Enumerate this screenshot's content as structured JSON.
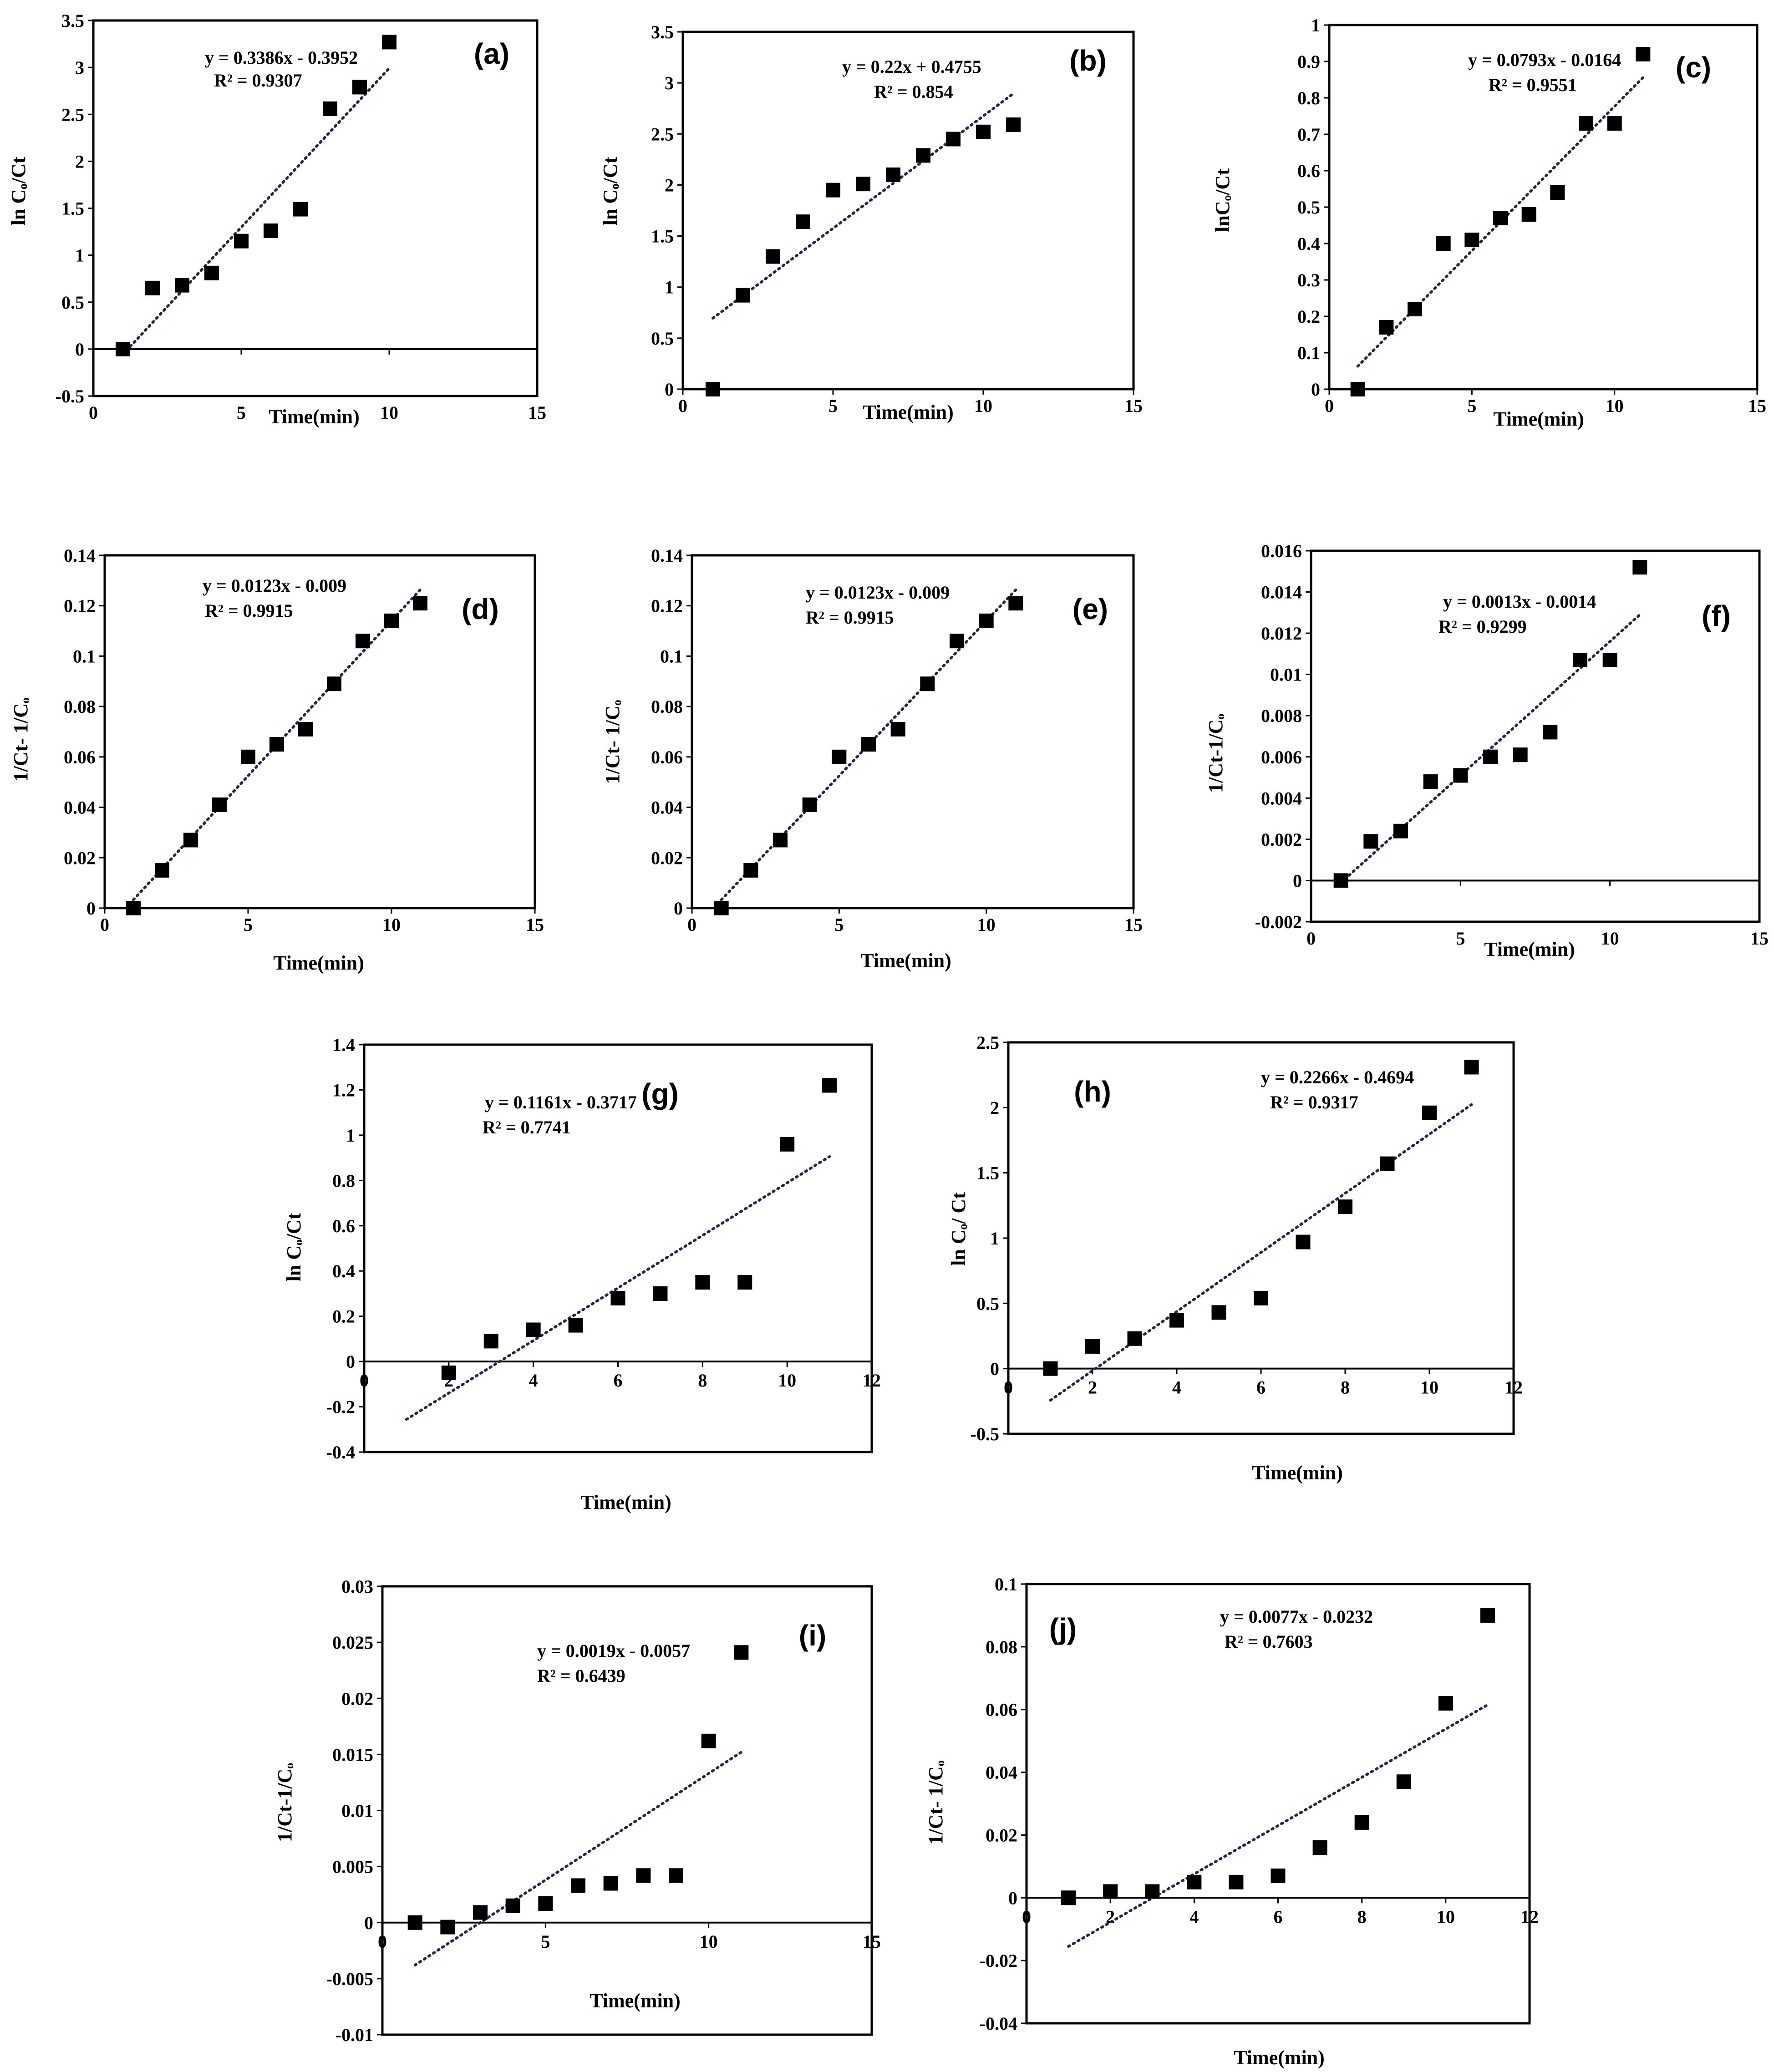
{
  "chart_data": [
    {
      "id": "a",
      "type": "scatter",
      "panel_label": "(a)",
      "xlabel": "Time(min)",
      "ylabel": "ln Cₒ/Ct",
      "xlim": [
        0,
        15
      ],
      "ylim": [
        -0.5,
        3.5
      ],
      "xticks": [
        "0",
        "5",
        "10",
        "15"
      ],
      "yticks": [
        "-0.5",
        "0",
        "0.5",
        "1",
        "1.5",
        "2",
        "2.5",
        "3",
        "3.5"
      ],
      "x": [
        1,
        2,
        3,
        4,
        5,
        6,
        7,
        8,
        9,
        10
      ],
      "y": [
        0,
        0.65,
        0.68,
        0.81,
        1.15,
        1.26,
        1.49,
        2.56,
        2.79,
        3.27
      ],
      "trendline": {
        "slope": 0.3386,
        "intercept": -0.3952,
        "x_range": [
          1,
          10
        ]
      },
      "equation": "y = 0.3386x - 0.3952",
      "r2": "R² = 0.9307"
    },
    {
      "id": "b",
      "type": "scatter",
      "panel_label": "(b)",
      "xlabel": "Time(min)",
      "ylabel": "ln Cₒ/Ct",
      "xlim": [
        0,
        15
      ],
      "ylim": [
        0,
        3.5
      ],
      "xticks": [
        "0",
        "5",
        "10",
        "15"
      ],
      "yticks": [
        "0",
        "0.5",
        "1",
        "1.5",
        "2",
        "2.5",
        "3",
        "3.5"
      ],
      "x": [
        1,
        2,
        3,
        4,
        5,
        6,
        7,
        8,
        9,
        10,
        11
      ],
      "y": [
        0,
        0.92,
        1.3,
        1.64,
        1.95,
        2.01,
        2.1,
        2.29,
        2.45,
        2.52,
        2.59
      ],
      "trendline": {
        "slope": 0.22,
        "intercept": 0.4755,
        "x_range": [
          1,
          11
        ]
      },
      "equation": "y = 0.22x + 0.4755",
      "r2": "R² = 0.854"
    },
    {
      "id": "c",
      "type": "scatter",
      "panel_label": "(c)",
      "xlabel": "Time(min)",
      "ylabel": "lnCₒ/Ct",
      "xlim": [
        0,
        15
      ],
      "ylim": [
        0,
        1
      ],
      "xticks": [
        "0",
        "5",
        "10",
        "15"
      ],
      "yticks": [
        "0",
        "0.1",
        "0.2",
        "0.3",
        "0.4",
        "0.5",
        "0.6",
        "0.7",
        "0.8",
        "0.9",
        "1"
      ],
      "x": [
        1,
        2,
        3,
        4,
        5,
        6,
        7,
        8,
        9,
        10,
        11
      ],
      "y": [
        0,
        0.17,
        0.22,
        0.4,
        0.41,
        0.47,
        0.48,
        0.54,
        0.73,
        0.73,
        0.92
      ],
      "trendline": {
        "slope": 0.0793,
        "intercept": -0.0164,
        "x_range": [
          1,
          11
        ]
      },
      "equation": "y = 0.0793x - 0.0164",
      "r2": "R² = 0.9551"
    },
    {
      "id": "d",
      "type": "scatter",
      "panel_label": "(d)",
      "xlabel": "Time(min)",
      "ylabel": "1/Ct- 1/Cₒ",
      "xlim": [
        0,
        15
      ],
      "ylim": [
        0,
        0.14
      ],
      "xticks": [
        "0",
        "5",
        "10",
        "15"
      ],
      "yticks": [
        "0",
        "0.02",
        "0.04",
        "0.06",
        "0.08",
        "0.1",
        "0.12",
        "0.14"
      ],
      "x": [
        1,
        2,
        3,
        4,
        5,
        6,
        7,
        8,
        9,
        10,
        11
      ],
      "y": [
        0,
        0.015,
        0.027,
        0.041,
        0.06,
        0.065,
        0.071,
        0.089,
        0.106,
        0.114,
        0.121
      ],
      "trendline": {
        "slope": 0.0123,
        "intercept": -0.009,
        "x_range": [
          1,
          11
        ]
      },
      "equation": "y = 0.0123x - 0.009",
      "r2": "R² = 0.9915"
    },
    {
      "id": "e",
      "type": "scatter",
      "panel_label": "(e)",
      "xlabel": "Time(min)",
      "ylabel": "1/Ct- 1/Cₒ",
      "xlim": [
        0,
        15
      ],
      "ylim": [
        0,
        0.14
      ],
      "xticks": [
        "0",
        "5",
        "10",
        "15"
      ],
      "yticks": [
        "0",
        "0.02",
        "0.04",
        "0.06",
        "0.08",
        "0.1",
        "0.12",
        "0.14"
      ],
      "x": [
        1,
        2,
        3,
        4,
        5,
        6,
        7,
        8,
        9,
        10,
        11
      ],
      "y": [
        0,
        0.015,
        0.027,
        0.041,
        0.06,
        0.065,
        0.071,
        0.089,
        0.106,
        0.114,
        0.121
      ],
      "trendline": {
        "slope": 0.0123,
        "intercept": -0.009,
        "x_range": [
          1,
          11
        ]
      },
      "equation": "y = 0.0123x - 0.009",
      "r2": "R² = 0.9915"
    },
    {
      "id": "f",
      "type": "scatter",
      "panel_label": "(f)",
      "xlabel": "Time(min)",
      "ylabel": "1/Ct-1/Cₒ",
      "xlim": [
        0,
        15
      ],
      "ylim": [
        -0.002,
        0.016
      ],
      "xticks": [
        "0",
        "5",
        "10",
        "15"
      ],
      "yticks": [
        "-0.002",
        "0",
        "0.002",
        "0.004",
        "0.006",
        "0.008",
        "0.01",
        "0.012",
        "0.014",
        "0.016"
      ],
      "x": [
        1,
        2,
        3,
        4,
        5,
        6,
        7,
        8,
        9,
        10,
        11
      ],
      "y": [
        0,
        0.0019,
        0.0024,
        0.0048,
        0.0051,
        0.006,
        0.0061,
        0.0072,
        0.0107,
        0.0107,
        0.0152
      ],
      "trendline": {
        "slope": 0.0013,
        "intercept": -0.0014,
        "x_range": [
          1,
          11
        ]
      },
      "equation": "y = 0.0013x - 0.0014",
      "r2": "R² = 0.9299"
    },
    {
      "id": "g",
      "type": "scatter",
      "panel_label": "(g)",
      "xlabel": "Time(min)",
      "ylabel": "ln Cₒ/Ct",
      "xlim": [
        0,
        12
      ],
      "ylim": [
        -0.4,
        1.4
      ],
      "xticks": [
        "0",
        "2",
        "4",
        "6",
        "8",
        "10",
        "12"
      ],
      "yticks": [
        "-0.4",
        "-0.2",
        "0",
        "0.2",
        "0.4",
        "0.6",
        "0.8",
        "1",
        "1.2",
        "1.4"
      ],
      "x": [
        2,
        3,
        4,
        5,
        6,
        7,
        8,
        9,
        10,
        11
      ],
      "y": [
        -0.05,
        0.09,
        0.14,
        0.16,
        0.28,
        0.3,
        0.35,
        0.35,
        0.96,
        1.22
      ],
      "trendline": {
        "slope": 0.1161,
        "intercept": -0.3717,
        "x_range": [
          1,
          11
        ]
      },
      "equation": "y = 0.1161x - 0.3717",
      "r2": "R² = 0.7741"
    },
    {
      "id": "h",
      "type": "scatter",
      "panel_label": "(h)",
      "xlabel": "Time(min)",
      "ylabel": "ln Cₒ/ Ct",
      "xlim": [
        0,
        12
      ],
      "ylim": [
        -0.5,
        2.5
      ],
      "xticks": [
        "0",
        "2",
        "4",
        "6",
        "8",
        "10",
        "12"
      ],
      "yticks": [
        "-0.5",
        "0",
        "0.5",
        "1",
        "1.5",
        "2",
        "2.5"
      ],
      "x": [
        1,
        2,
        3,
        4,
        5,
        6,
        7,
        8,
        9,
        10,
        11
      ],
      "y": [
        0,
        0.17,
        0.23,
        0.37,
        0.43,
        0.54,
        0.97,
        1.24,
        1.57,
        1.96,
        2.31
      ],
      "trendline": {
        "slope": 0.2266,
        "intercept": -0.4694,
        "x_range": [
          1,
          11
        ]
      },
      "equation": "y = 0.2266x - 0.4694",
      "r2": "R² = 0.9317"
    },
    {
      "id": "i",
      "type": "scatter",
      "panel_label": "(i)",
      "xlabel": "Time(min)",
      "ylabel": "1/Ct-1/Cₒ",
      "xlim": [
        0,
        15
      ],
      "ylim": [
        -0.01,
        0.03
      ],
      "xticks": [
        "0",
        "5",
        "10",
        "15"
      ],
      "yticks": [
        "-0.01",
        "-0.005",
        "0",
        "0.005",
        "0.01",
        "0.015",
        "0.02",
        "0.025",
        "0.03"
      ],
      "x": [
        1,
        2,
        3,
        4,
        5,
        6,
        7,
        8,
        9,
        10,
        11
      ],
      "y": [
        0,
        -0.0004,
        0.0009,
        0.0015,
        0.0017,
        0.0033,
        0.0035,
        0.0042,
        0.0042,
        0.0162,
        0.0241
      ],
      "trendline": {
        "slope": 0.0019,
        "intercept": -0.0057,
        "x_range": [
          1,
          11
        ]
      },
      "equation": "y = 0.0019x - 0.0057",
      "r2": "R² = 0.6439"
    },
    {
      "id": "j",
      "type": "scatter",
      "panel_label": "(j)",
      "xlabel": "Time(min)",
      "ylabel": "1/Ct- 1/Cₒ",
      "xlim": [
        0,
        12
      ],
      "ylim": [
        -0.04,
        0.1
      ],
      "xticks": [
        "0",
        "2",
        "4",
        "6",
        "8",
        "10",
        "12"
      ],
      "yticks": [
        "-0.04",
        "-0.02",
        "0",
        "0.02",
        "0.04",
        "0.06",
        "0.08",
        "0.1"
      ],
      "x": [
        1,
        2,
        3,
        4,
        5,
        6,
        7,
        8,
        9,
        10,
        11
      ],
      "y": [
        0,
        0.002,
        0.002,
        0.005,
        0.005,
        0.007,
        0.016,
        0.024,
        0.037,
        0.062,
        0.09
      ],
      "trendline": {
        "slope": 0.0077,
        "intercept": -0.0232,
        "x_range": [
          1,
          11
        ]
      },
      "equation": "y = 0.0077x - 0.0232",
      "r2": "R² = 0.7603"
    }
  ]
}
